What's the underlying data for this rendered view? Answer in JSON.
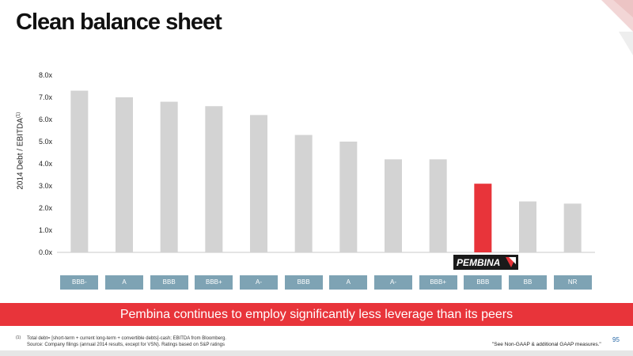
{
  "title": "Clean balance sheet",
  "chart_data": {
    "type": "bar",
    "ylabel": "2014 Debt / EBITDA",
    "ylabel_sup": "(1)",
    "ylim": [
      0,
      8
    ],
    "yticks": [
      "0.0x",
      "1.0x",
      "2.0x",
      "3.0x",
      "4.0x",
      "5.0x",
      "6.0x",
      "7.0x",
      "8.0x"
    ],
    "grid": false,
    "values": [
      7.3,
      7.0,
      6.8,
      6.6,
      6.2,
      5.3,
      5.0,
      4.2,
      4.2,
      3.1,
      2.3,
      2.2
    ],
    "highlight_index": 9,
    "colors": {
      "bar": "#d3d3d3",
      "highlight": "#e8343a"
    },
    "categories": [
      "BBB-",
      "A",
      "BBB",
      "BBB+",
      "A-",
      "BBB",
      "A",
      "A-",
      "BBB+",
      "BBB",
      "BB",
      "NR"
    ]
  },
  "logo_text": "PEMBINA",
  "banner_text": "Pembina continues to employ significantly less leverage than its peers",
  "footnote": {
    "mark": "(1)",
    "line1": "Total debt= [short-term + current long-term + convertible debts]-cash; EBITDA from Bloomberg.",
    "line2": "Source: Company filings (annual 2014 results, except for VSN). Ratings based on S&P ratings"
  },
  "nongaap_note": "\"See Non-GAAP & additional GAAP measures.\"",
  "page_number": "95",
  "colors": {
    "accent": "#e8343a",
    "rating_box": "#7ea3b4",
    "page_number": "#2a6aa8"
  }
}
